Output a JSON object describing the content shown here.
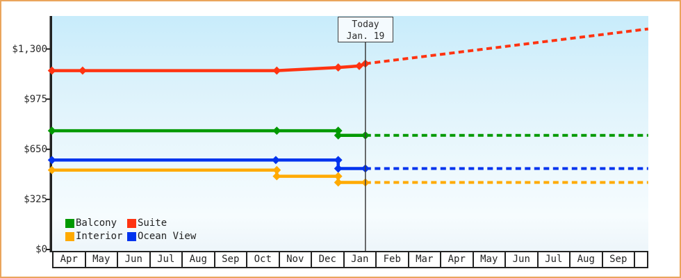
{
  "today_marker": {
    "line1": "Today",
    "line2": "Jan. 19",
    "month_x": 9.64
  },
  "chart_data": {
    "type": "line",
    "title": "",
    "xlabel": "",
    "ylabel": "",
    "x_axis": {
      "unit": "months",
      "tick_labels": [
        "Apr",
        "May",
        "Jun",
        "Jul",
        "Aug",
        "Sep",
        "Oct",
        "Nov",
        "Dec",
        "Jan",
        "Feb",
        "Mar",
        "Apr",
        "May",
        "Jun",
        "Jul",
        "Aug",
        "Sep",
        ""
      ],
      "range_months": [
        0,
        18.38
      ]
    },
    "y_axis": {
      "tick_values": [
        0,
        325,
        650,
        975,
        1300
      ],
      "tick_labels": [
        "$0",
        "$325",
        "$650",
        "$975",
        "$1,300"
      ],
      "range": [
        0,
        1460
      ],
      "grid": false
    },
    "today_line_month_x": 9.64,
    "series": [
      {
        "name": "Interior",
        "color": "#ffaa00",
        "solid_points": [
          [
            -0.05,
            515
          ],
          [
            6.9,
            515
          ],
          [
            6.9,
            475
          ],
          [
            8.8,
            475
          ],
          [
            8.8,
            435
          ],
          [
            9.64,
            435
          ]
        ],
        "forecast_points": [
          [
            9.64,
            435
          ],
          [
            18.38,
            435
          ]
        ]
      },
      {
        "name": "Ocean View",
        "color": "#0033ee",
        "solid_points": [
          [
            -0.05,
            580
          ],
          [
            6.87,
            580
          ],
          [
            8.8,
            580
          ],
          [
            8.8,
            525
          ],
          [
            9.64,
            525
          ]
        ],
        "forecast_points": [
          [
            9.64,
            525
          ],
          [
            18.38,
            525
          ]
        ]
      },
      {
        "name": "Balcony",
        "color": "#009900",
        "solid_points": [
          [
            -0.05,
            770
          ],
          [
            6.9,
            770
          ],
          [
            8.8,
            770
          ],
          [
            8.8,
            740
          ],
          [
            9.64,
            740
          ]
        ],
        "forecast_points": [
          [
            9.64,
            740
          ],
          [
            18.38,
            740
          ]
        ]
      },
      {
        "name": "Suite",
        "color": "#ff3311",
        "solid_points": [
          [
            -0.05,
            1160
          ],
          [
            0.9,
            1160
          ],
          [
            6.9,
            1160
          ],
          [
            8.8,
            1180
          ],
          [
            9.45,
            1190
          ],
          [
            9.64,
            1205
          ]
        ],
        "forecast_points": [
          [
            9.64,
            1205
          ],
          [
            18.38,
            1430
          ]
        ]
      }
    ],
    "legend": {
      "position": "bottom-left",
      "items": [
        {
          "label": "Balcony",
          "color": "#009900"
        },
        {
          "label": "Suite",
          "color": "#ff3311"
        },
        {
          "label": "Interior",
          "color": "#ffaa00"
        },
        {
          "label": "Ocean View",
          "color": "#0033ee"
        }
      ]
    }
  },
  "colors": {
    "frame_border": "#eaa55c",
    "axis": "#222222",
    "today_line": "#3c3c3c",
    "plot_bg_top": "#c8ecfb",
    "plot_bg_bottom": "#f6fcfe"
  }
}
